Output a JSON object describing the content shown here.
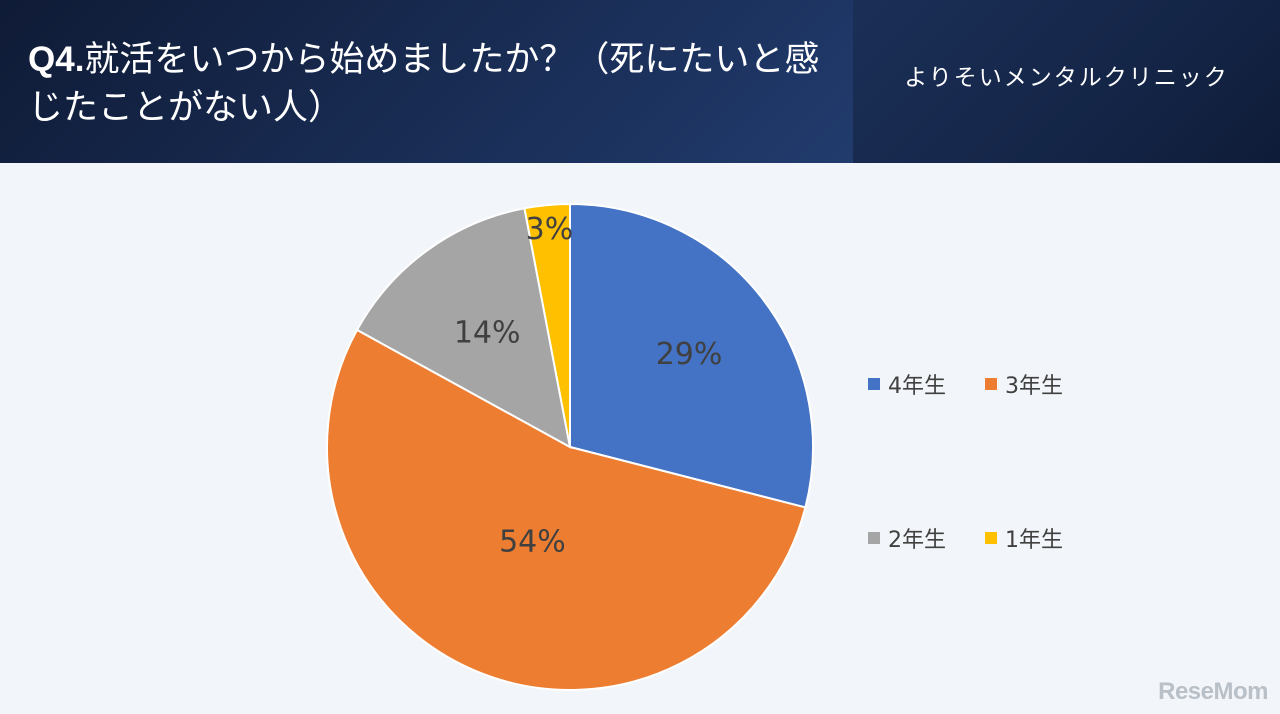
{
  "header": {
    "question_number": "Q4.",
    "question_text": "就活をいつから始めましたか？（死にたいと感じたことがない人）",
    "clinic_name": "よりそいメンタルクリニック"
  },
  "chart_data": {
    "type": "pie",
    "title": "",
    "start_angle_deg": 0,
    "direction": "clockwise",
    "legend_position": "right",
    "slices": [
      {
        "label": "4年生",
        "value": 29,
        "display": "29%",
        "color": "#4472c4"
      },
      {
        "label": "3年生",
        "value": 54,
        "display": "54%",
        "color": "#ed7d31"
      },
      {
        "label": "2年生",
        "value": 14,
        "display": "14%",
        "color": "#a5a5a5"
      },
      {
        "label": "1年生",
        "value": 3,
        "display": "3%",
        "color": "#ffc000"
      }
    ]
  },
  "watermark": "ReseMom"
}
